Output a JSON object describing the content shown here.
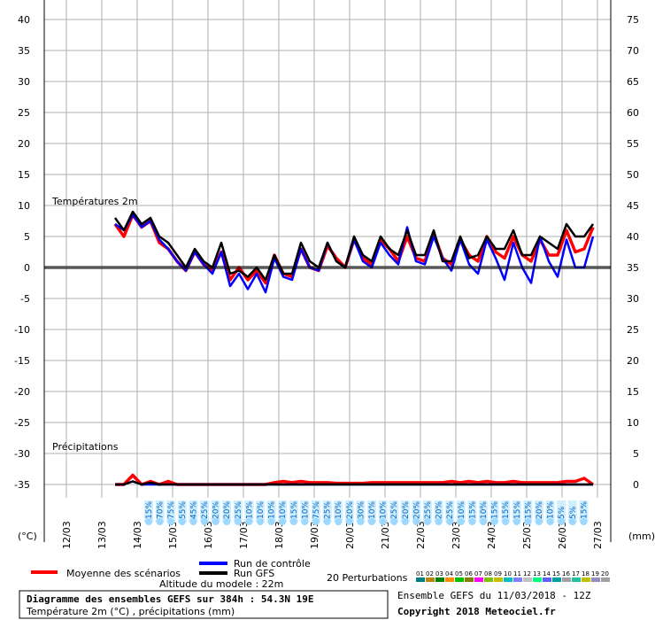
{
  "chart_data": {
    "type": "line",
    "title": "Diagramme des ensembles GEFS sur 384h : 54.3N 19E",
    "subtitle": "Température 2m (°C) , précipitations (mm)",
    "panel_temp_label": "Températures 2m",
    "panel_precip_label": "Précipitations",
    "left_axis_unit": "(°C)",
    "right_axis_unit": "(mm)",
    "left_ticks": [
      40,
      35,
      30,
      25,
      20,
      15,
      10,
      5,
      0,
      -5,
      -10,
      -15,
      -20,
      -25,
      -30,
      -35
    ],
    "right_ticks": [
      75,
      70,
      65,
      60,
      55,
      50,
      45,
      40,
      35,
      30,
      25,
      20,
      15,
      10,
      5,
      0
    ],
    "temp_ylim": [
      -40,
      40
    ],
    "x_labels": [
      "12/03",
      "13/03",
      "14/03",
      "15/03",
      "16/03",
      "17/03",
      "18/03",
      "19/03",
      "20/03",
      "21/03",
      "22/03",
      "23/03",
      "24/03",
      "25/03",
      "26/03",
      "27/03"
    ],
    "x_range_hours": [
      0,
      384
    ],
    "prob_labels": [
      "15%",
      "70%",
      "75%",
      "55%",
      "45%",
      "25%",
      "20%",
      "20%",
      "25%",
      "10%",
      "10%",
      "10%",
      "10%",
      "15%",
      "10%",
      "75%",
      "25%",
      "10%",
      "20%",
      "30%",
      "10%",
      "10%",
      "25%",
      "20%",
      "20%",
      "25%",
      "20%",
      "25%",
      "10%",
      "15%",
      "10%",
      "15%",
      "15%",
      "15%",
      "15%",
      "20%",
      "10%",
      "5%",
      "5%",
      "15%"
    ],
    "legend": {
      "mean": "Moyenne des scénarios",
      "control": "Run de contrôle",
      "gfs": "Run GFS",
      "perturbations": "20 Perturbations",
      "altitude": "Altitude du modele : 22m",
      "perturbation_ids": [
        "01",
        "02",
        "03",
        "04",
        "05",
        "06",
        "07",
        "08",
        "09",
        "10",
        "11",
        "12",
        "13",
        "14",
        "15",
        "16",
        "17",
        "18",
        "19",
        "20"
      ]
    },
    "ensemble_run": "Ensemble GEFS du 11/03/2018 - 12Z",
    "copyright": "Copyright 2018 Meteociel.fr",
    "colors": {
      "mean": "#ff0000",
      "control": "#0000ff",
      "gfs": "#000000",
      "perturbations": [
        "#008080",
        "#b8860b",
        "#008000",
        "#ff8c00",
        "#00c000",
        "#808000",
        "#ff00ff",
        "#80c000",
        "#c0c000",
        "#00c0c0",
        "#8080ff",
        "#c0c0c0",
        "#00ff80",
        "#6060ff",
        "#00a0a0",
        "#a0a0a0",
        "#20c0a0",
        "#c0c000",
        "#9090c0",
        "#a0a0a0"
      ]
    },
    "series": [
      {
        "name": "Moyenne des scénarios",
        "role": "mean",
        "temp": [
          7,
          5,
          8.5,
          6.5,
          7.5,
          4,
          3,
          1,
          -0.5,
          2.5,
          0.5,
          -0.5,
          2.5,
          -2,
          0,
          -2,
          -0.5,
          -2.5,
          2,
          -1,
          -1.5,
          3,
          0,
          -0.5,
          3.5,
          1.5,
          0,
          4.5,
          1.5,
          0.5,
          4.5,
          3,
          1,
          5,
          1.5,
          1,
          5.5,
          1.5,
          0.5,
          4.5,
          2,
          1,
          5,
          2.5,
          1.5,
          5,
          2,
          1,
          4.5,
          2,
          2,
          6,
          2.5,
          3,
          6.5
        ],
        "precip": [
          0,
          0,
          1.5,
          0,
          0.5,
          0,
          0.5,
          0,
          0,
          0,
          0,
          0,
          0,
          0,
          0,
          0,
          0,
          0,
          0.3,
          0.5,
          0.3,
          0.5,
          0.3,
          0.3,
          0.3,
          0.2,
          0.2,
          0.2,
          0.2,
          0.3,
          0.3,
          0.3,
          0.3,
          0.3,
          0.3,
          0.3,
          0.3,
          0.3,
          0.5,
          0.3,
          0.5,
          0.3,
          0.5,
          0.3,
          0.3,
          0.5,
          0.3,
          0.3,
          0.3,
          0.3,
          0.3,
          0.5,
          0.5,
          1,
          0
        ]
      },
      {
        "name": "Run de contrôle",
        "role": "control",
        "temp": [
          7,
          6,
          8.5,
          6.5,
          7.5,
          4.5,
          3,
          1,
          -0.5,
          2.5,
          0.5,
          -1,
          2.5,
          -3,
          -1,
          -3.5,
          -1,
          -4,
          1.5,
          -1.5,
          -2,
          3,
          0,
          -0.5,
          4,
          1,
          0,
          4.5,
          1,
          0,
          4,
          2,
          0.5,
          6.5,
          1,
          0.5,
          5,
          1.5,
          -0.5,
          4.5,
          0.5,
          -1,
          4.5,
          1.5,
          -2,
          4,
          0,
          -2.5,
          5,
          1,
          -1.5,
          4.5,
          0,
          0,
          5
        ],
        "precip": [
          0,
          0,
          0.5,
          0,
          0,
          0,
          0,
          0,
          0,
          0,
          0,
          0,
          0,
          0,
          0,
          0,
          0,
          0,
          0,
          0,
          0,
          0,
          0,
          0,
          0,
          0,
          0,
          0,
          0,
          0,
          0,
          0,
          0,
          0,
          0,
          0,
          0,
          0,
          0,
          0,
          0,
          0,
          0,
          0,
          0,
          0,
          0,
          0,
          0,
          0,
          0,
          0,
          0,
          0,
          0
        ]
      },
      {
        "name": "Run GFS",
        "role": "gfs",
        "temp": [
          8,
          6,
          9,
          7,
          8,
          5,
          4,
          2,
          0,
          3,
          1,
          0,
          4,
          -1,
          -0.5,
          -1.5,
          0,
          -2,
          2,
          -1,
          -1,
          4,
          1,
          0,
          4,
          1,
          0,
          5,
          2,
          1,
          5,
          3,
          2,
          6,
          2,
          2,
          6,
          1,
          1,
          5,
          1.5,
          2,
          5,
          3,
          3,
          6,
          2,
          2,
          5,
          4,
          3,
          7,
          5,
          5,
          7
        ],
        "precip": [
          0,
          0,
          0.5,
          0,
          0.3,
          0,
          0,
          0,
          0,
          0,
          0,
          0,
          0,
          0,
          0,
          0,
          0,
          0,
          0,
          0,
          0,
          0,
          0,
          0,
          0,
          0,
          0,
          0,
          0,
          0,
          0,
          0,
          0,
          0,
          0,
          0,
          0,
          0,
          0,
          0,
          0,
          0,
          0,
          0,
          0,
          0,
          0,
          0,
          0,
          0,
          0,
          0,
          0,
          0,
          0
        ]
      }
    ]
  }
}
